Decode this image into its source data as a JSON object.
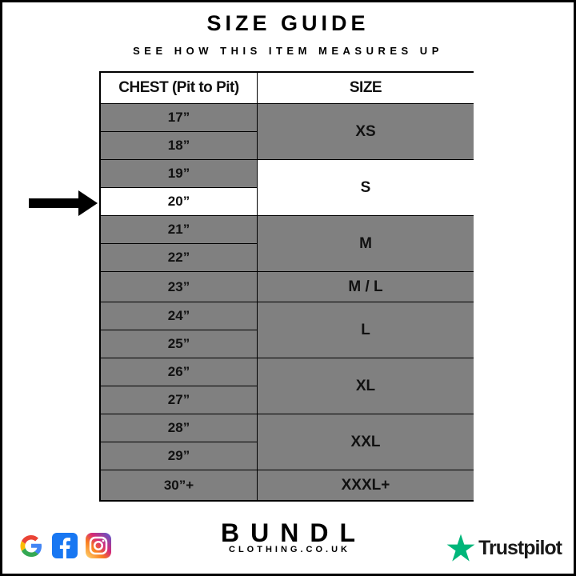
{
  "title": "SIZE GUIDE",
  "subtitle": "SEE HOW THIS ITEM MEASURES UP",
  "table": {
    "headers": [
      "CHEST (Pit to Pit)",
      "SIZE"
    ],
    "chest": [
      "17”",
      "18”",
      "19”",
      "20”",
      "21”",
      "22”",
      "23”",
      "24”",
      "25”",
      "26”",
      "27”",
      "28”",
      "29”",
      "30”+"
    ],
    "sizes": [
      {
        "label": "XS",
        "rows": 2
      },
      {
        "label": "S",
        "rows": 2
      },
      {
        "label": "M",
        "rows": 2
      },
      {
        "label": "M / L",
        "rows": 1
      },
      {
        "label": "L",
        "rows": 2
      },
      {
        "label": "XL",
        "rows": 2
      },
      {
        "label": "XXL",
        "rows": 2
      },
      {
        "label": "XXXL+",
        "rows": 1
      }
    ],
    "highlighted_chest": "20”",
    "highlighted_size": "S"
  },
  "colors": {
    "row": "#808080",
    "highlight": "#ffffff",
    "trustpilot": "#00b67a"
  },
  "footer": {
    "brand": "BUNDL",
    "brand_sub": "CLOTHING.CO.UK",
    "trustpilot": "Trustpilot",
    "social_icons": [
      "google-icon",
      "facebook-icon",
      "instagram-icon"
    ]
  }
}
